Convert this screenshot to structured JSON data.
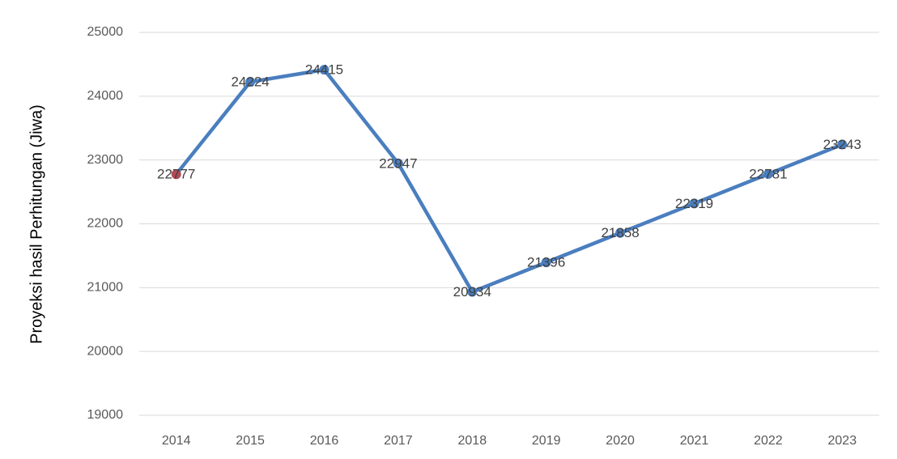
{
  "chart_data": {
    "type": "line",
    "y_label": "Proyeksi hasil Perhitungan (Jiwa)",
    "categories": [
      "2014",
      "2015",
      "2016",
      "2017",
      "2018",
      "2019",
      "2020",
      "2021",
      "2022",
      "2023"
    ],
    "series": [
      {
        "color": "#4a7ebf",
        "point_colors": [
          "#b04a55",
          "#4a7ebf",
          "#4a7ebf",
          "#4a7ebf",
          "#4a7ebf",
          "#4a7ebf",
          "#4a7ebf",
          "#4a7ebf",
          "#4a7ebf",
          "#4a7ebf"
        ],
        "values": [
          22777,
          24224,
          24415,
          22947,
          20934,
          21396,
          21858,
          22319,
          22781,
          23243
        ]
      }
    ],
    "ylim": [
      19000,
      25000
    ],
    "yticks": [
      19000,
      20000,
      21000,
      22000,
      23000,
      24000,
      25000
    ],
    "grid": true,
    "grid_color": "#d9d9d9"
  }
}
